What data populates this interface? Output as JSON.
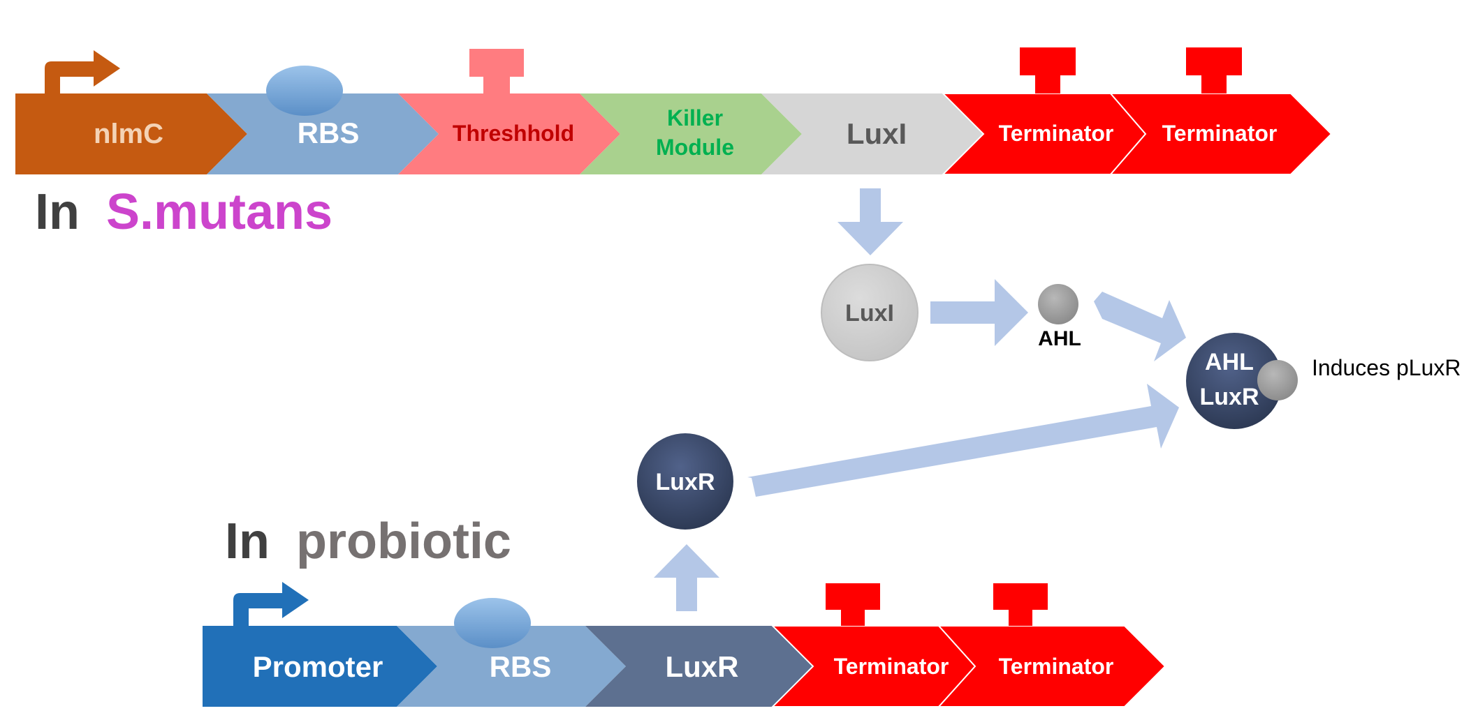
{
  "top_construct": {
    "parts": {
      "promoter": "nlmC",
      "rbs": "RBS",
      "threshold": "Threshhold",
      "killer_line1": "Killer",
      "killer_line2": "Module",
      "luxi": "LuxI",
      "terminator1": "Terminator",
      "terminator2": "Terminator"
    },
    "label_prefix": "In",
    "label_organism": "S.mutans"
  },
  "bottom_construct": {
    "parts": {
      "promoter": "Promoter",
      "rbs": "RBS",
      "luxr": "LuxR",
      "terminator1": "Terminator",
      "terminator2": "Terminator"
    },
    "label_prefix": "In",
    "label_organism": "probiotic"
  },
  "nodes": {
    "luxi_protein": "LuxI",
    "ahl": "AHL",
    "luxr_protein": "LuxR",
    "complex_line1": "AHL",
    "complex_line2": "LuxR",
    "induces": "Induces pLuxR"
  },
  "colors": {
    "nlmc_promoter": "#c55a11",
    "rbs": "#84a9d0",
    "threshold": "#ff7c80",
    "threshold_text": "#c00000",
    "killer": "#a9d18e",
    "killer_text": "#00b050",
    "luxi_part": "#d6d6d6",
    "luxi_text": "#595959",
    "terminator": "#ff0000",
    "probiotic_promoter": "#2170b8",
    "luxr_part": "#5d7090",
    "arrow": "#b4c7e7",
    "s_mutans_text": "#cc44cc",
    "probiotic_text": "#767171",
    "in_text": "#404040",
    "protein_dark": "#3b4a66",
    "ahl_grey": "#9e9e9e"
  }
}
